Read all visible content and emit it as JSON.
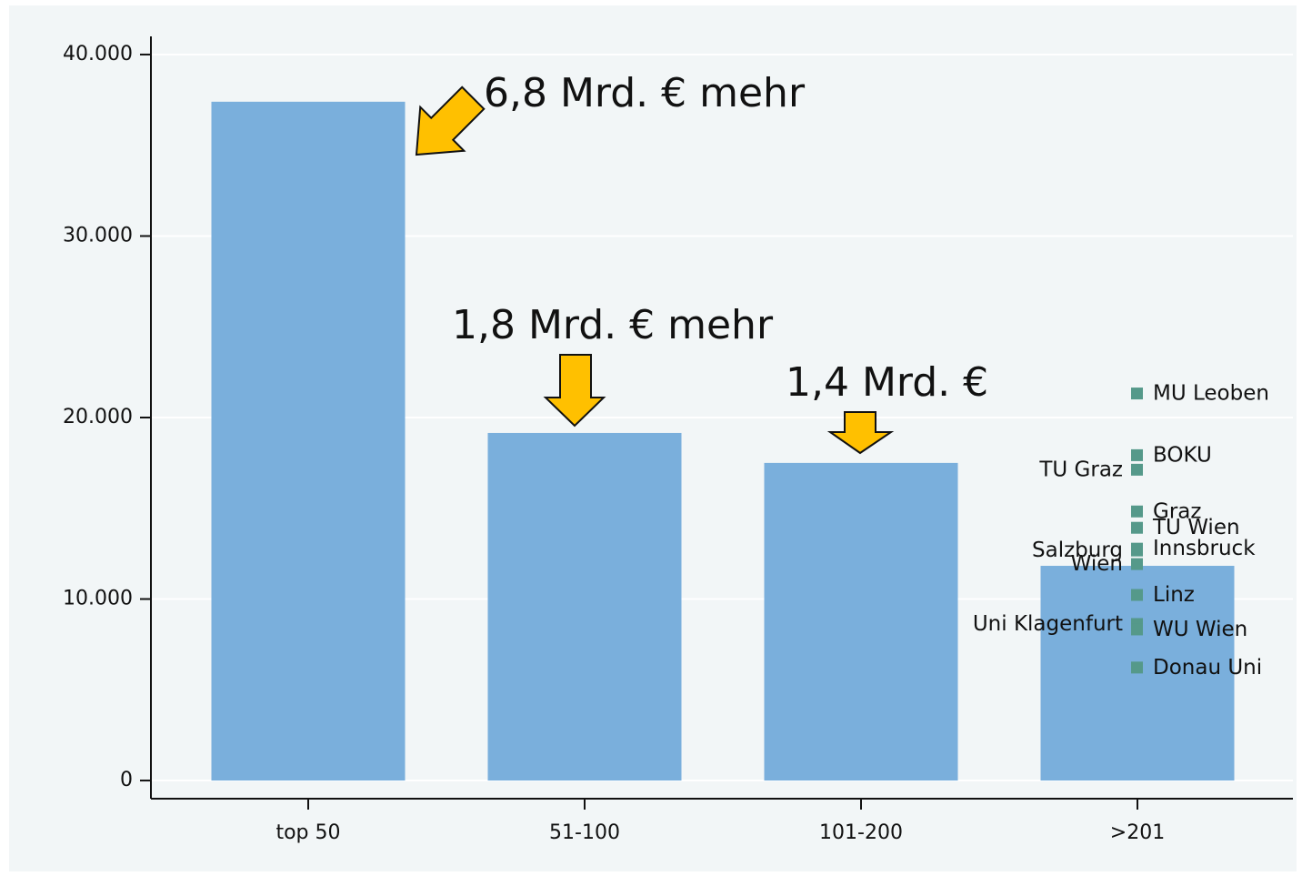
{
  "chart_data": {
    "type": "bar",
    "categories": [
      "top 50",
      "51-100",
      "101-200",
      ">201"
    ],
    "values": [
      37400,
      19150,
      17500,
      11830
    ],
    "color": "#7aafdc",
    "ylim": [
      -1000,
      41000
    ],
    "yticks": [
      0,
      {
        "value": 10000,
        "label": "10.000"
      },
      {
        "value": 20000,
        "label": "20.000"
      },
      {
        "value": 30000,
        "label": "30.000"
      },
      {
        "value": 40000,
        "label": "40.000"
      }
    ],
    "grid": true,
    "annotations": [
      "6,8 Mrd. € mehr",
      "1,8 Mrd. € mehr",
      "1,4 Mrd. €"
    ],
    "overlay": {
      "type": "scatter",
      "color": "#55998a",
      "labels": [
        "MU Leoben",
        "BOKU",
        "TU Graz",
        "Graz",
        "TU Wien",
        "Innsbruck",
        "Salzburg",
        "Wien",
        "Linz",
        "Uni Klagenfurt",
        "WU Wien",
        "Donau Uni"
      ],
      "values": [
        21300,
        17900,
        17100,
        14800,
        13900,
        12750,
        12650,
        11900,
        10200,
        8600,
        8300,
        6200
      ]
    }
  }
}
